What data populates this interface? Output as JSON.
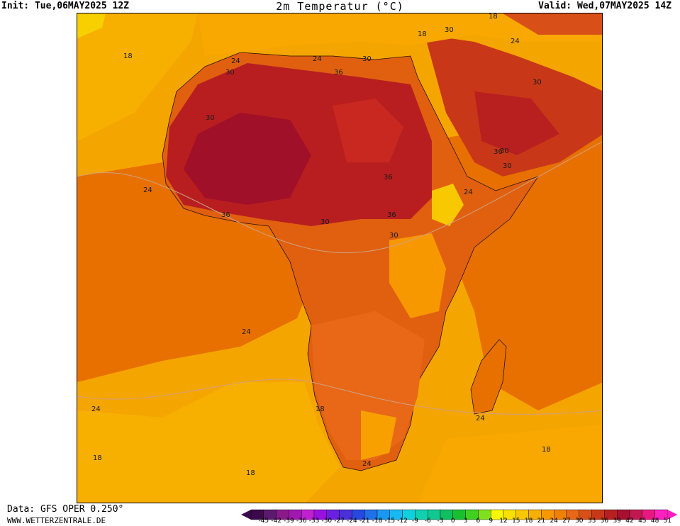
{
  "header": {
    "init": "Init: Tue,06MAY2025 12Z",
    "title": "2m Temperatur (°C)",
    "valid": "Valid: Wed,07MAY2025 14Z"
  },
  "footer": {
    "data_source": "Data: GFS OPER 0.250°",
    "website": "WWW.WETTERZENTRALE.DE"
  },
  "legend": {
    "ticks": [
      "-45",
      "-42",
      "-39",
      "-36",
      "-33",
      "-30",
      "-27",
      "-24",
      "-21",
      "-18",
      "-15",
      "-12",
      "-9",
      "-6",
      "-3",
      "0",
      "3",
      "6",
      "9",
      "12",
      "15",
      "18",
      "21",
      "24",
      "27",
      "30",
      "33",
      "36",
      "39",
      "42",
      "45",
      "48",
      "51"
    ],
    "colors": [
      "#3a0a4a",
      "#5c1a6e",
      "#8a1a8a",
      "#a018b0",
      "#c020d0",
      "#9a10e0",
      "#6a20e0",
      "#4a30d8",
      "#2848e0",
      "#2070e8",
      "#1898f0",
      "#18b8f0",
      "#10d0e0",
      "#10d0b0",
      "#10c890",
      "#10c060",
      "#18c030",
      "#40d020",
      "#80e020",
      "#f8f800",
      "#f8e000",
      "#f8c800",
      "#f8b000",
      "#f89800",
      "#f08000",
      "#e86818",
      "#d85018",
      "#c83818",
      "#b82020",
      "#a81030",
      "#c01850",
      "#e81880",
      "#ff20c0"
    ]
  },
  "map": {
    "region": "Africa",
    "contour_labels": [
      "18",
      "18",
      "18",
      "18",
      "18",
      "18",
      "18",
      "24",
      "24",
      "24",
      "24",
      "24",
      "24",
      "24",
      "24",
      "24",
      "30",
      "30",
      "30",
      "30",
      "30",
      "30",
      "30",
      "30",
      "30",
      "36",
      "36",
      "36",
      "36",
      "36"
    ]
  }
}
